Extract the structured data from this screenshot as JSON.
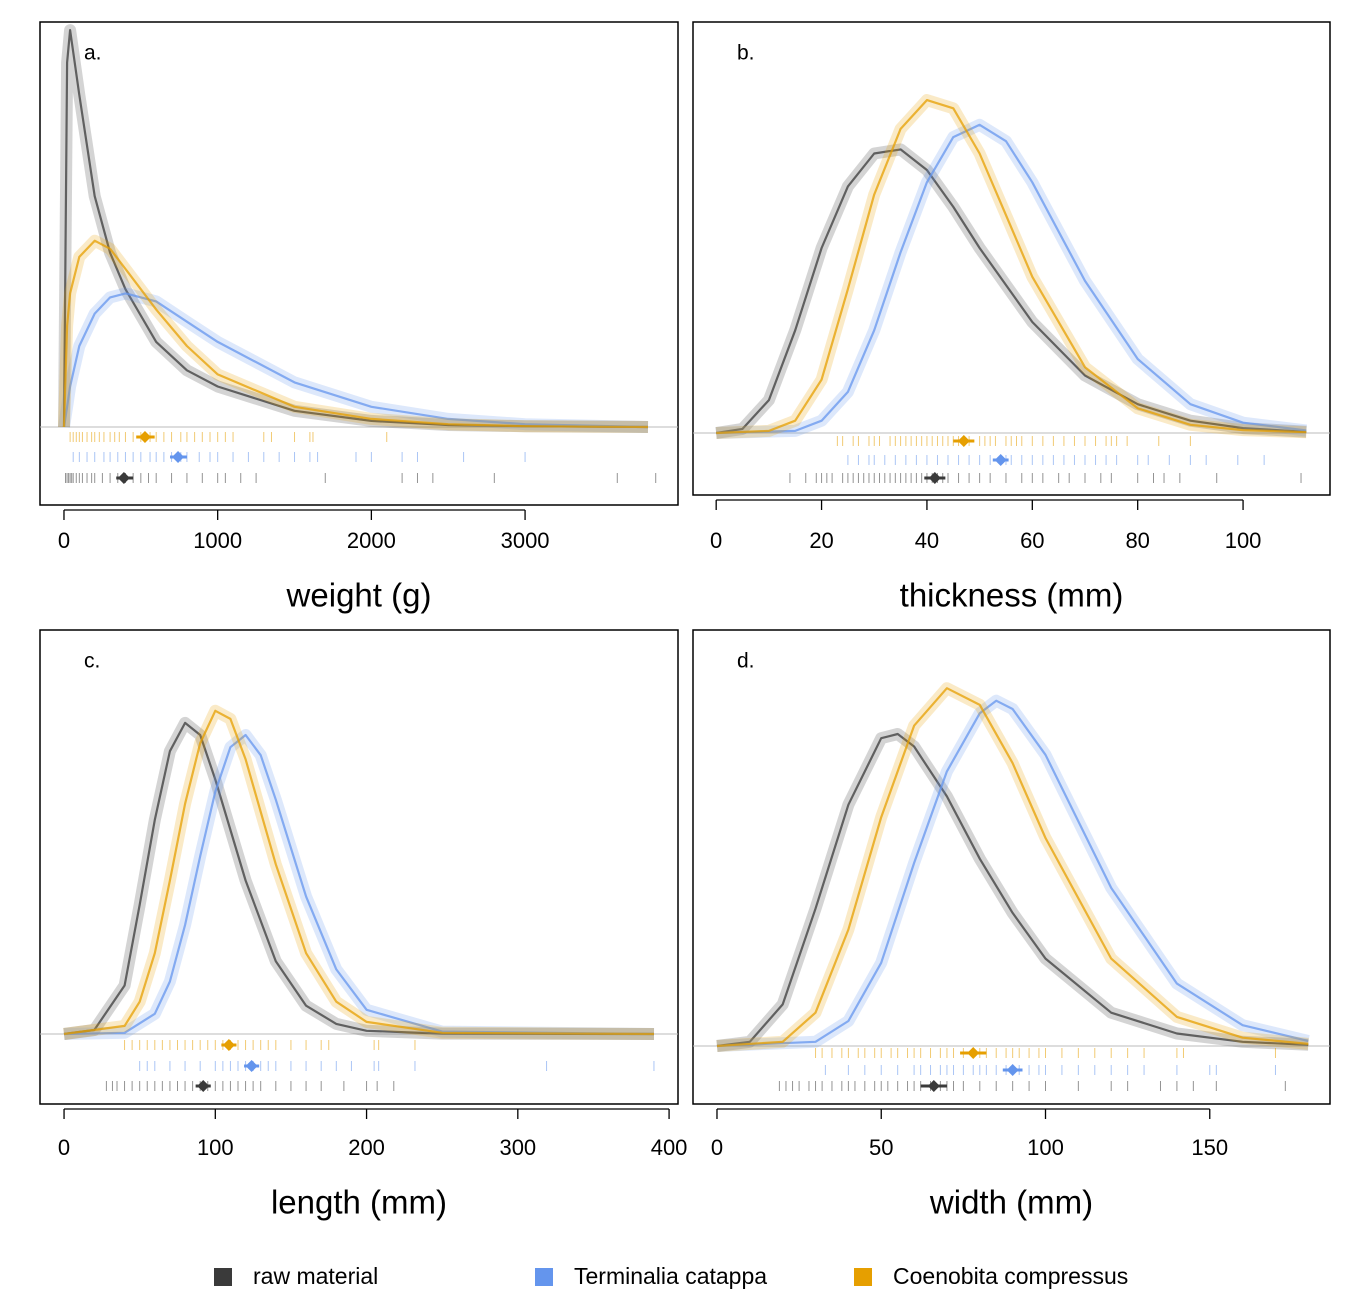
{
  "legend": [
    {
      "name": "raw material",
      "color": "#3a3a3a"
    },
    {
      "name": "Terminalia catappa",
      "color": "#6495ed"
    },
    {
      "name": "Coenobita compressus",
      "color": "#e69f00"
    }
  ],
  "chart_data": [
    {
      "type": "density",
      "label": "a.",
      "xlabel": "weight (g)",
      "xlim": [
        -156,
        3995
      ],
      "ylim": [
        0,
        1
      ],
      "xticks": [
        0,
        1000,
        2000,
        3000
      ],
      "series": [
        {
          "x": [
            0,
            20,
            40,
            100,
            200,
            300,
            400,
            600,
            800,
            1000,
            1500,
            2000,
            2500,
            3000,
            3800
          ],
          "values": [
            0,
            0.9,
            0.98,
            0.82,
            0.57,
            0.43,
            0.34,
            0.21,
            0.14,
            0.1,
            0.04,
            0.015,
            0.005,
            0.002,
            0
          ],
          "mean": 390,
          "interval": [
            340,
            450
          ],
          "rug": [
            10,
            20,
            30,
            40,
            50,
            60,
            80,
            100,
            120,
            150,
            180,
            200,
            250,
            300,
            350,
            400,
            450,
            500,
            550,
            600,
            700,
            800,
            900,
            1000,
            1050,
            1150,
            1250,
            1700,
            2200,
            2300,
            2400,
            2800,
            3600,
            3850
          ]
        },
        {
          "x": [
            0,
            20,
            40,
            100,
            200,
            300,
            400,
            600,
            800,
            1000,
            1500,
            2000,
            2500,
            3000,
            3800
          ],
          "values": [
            0,
            0.05,
            0.1,
            0.2,
            0.28,
            0.32,
            0.33,
            0.31,
            0.26,
            0.21,
            0.11,
            0.05,
            0.02,
            0.007,
            0
          ],
          "mean": 742,
          "interval": [
            690,
            800
          ],
          "rug": [
            60,
            100,
            150,
            200,
            260,
            300,
            350,
            400,
            450,
            500,
            560,
            600,
            650,
            700,
            760,
            800,
            880,
            950,
            1000,
            1100,
            1200,
            1300,
            1400,
            1500,
            1600,
            1650,
            1900,
            2000,
            2200,
            2300,
            2600,
            3000
          ]
        },
        {
          "x": [
            0,
            20,
            40,
            100,
            200,
            300,
            400,
            600,
            800,
            1000,
            1500,
            2000,
            2500,
            3000,
            3800
          ],
          "values": [
            0,
            0.25,
            0.33,
            0.42,
            0.46,
            0.44,
            0.39,
            0.29,
            0.2,
            0.13,
            0.05,
            0.02,
            0.007,
            0.002,
            0
          ],
          "mean": 527,
          "interval": [
            470,
            590
          ],
          "rug": [
            40,
            60,
            80,
            100,
            120,
            150,
            180,
            200,
            230,
            260,
            300,
            330,
            360,
            400,
            450,
            500,
            560,
            600,
            650,
            700,
            760,
            800,
            850,
            900,
            950,
            1000,
            1050,
            1100,
            1300,
            1350,
            1500,
            1600,
            1620,
            2100
          ]
        }
      ]
    },
    {
      "type": "density",
      "label": "b.",
      "xlabel": "thickness (mm)",
      "xlim": [
        -4.4,
        116.5
      ],
      "ylim": [
        0,
        1
      ],
      "xticks": [
        0,
        20,
        40,
        60,
        80,
        100
      ],
      "series": [
        {
          "x": [
            0,
            5,
            10,
            15,
            20,
            25,
            30,
            35,
            40,
            45,
            50,
            60,
            70,
            80,
            90,
            100,
            112
          ],
          "values": [
            0,
            0.01,
            0.08,
            0.25,
            0.45,
            0.6,
            0.68,
            0.69,
            0.64,
            0.55,
            0.45,
            0.27,
            0.14,
            0.07,
            0.03,
            0.012,
            0.003
          ],
          "mean": 41.5,
          "interval": [
            39.5,
            43.5
          ],
          "rug": [
            14,
            17,
            19,
            20,
            21,
            22,
            24,
            25,
            26,
            27,
            28,
            29,
            30,
            31,
            32,
            33,
            34,
            35,
            36,
            37,
            38,
            39,
            40,
            41,
            42,
            43,
            44,
            46,
            48,
            50,
            52,
            55,
            58,
            60,
            62,
            65,
            67,
            70,
            73,
            75,
            80,
            83,
            85,
            88,
            95,
            111
          ]
        },
        {
          "x": [
            0,
            15,
            20,
            25,
            30,
            35,
            40,
            45,
            50,
            55,
            60,
            70,
            80,
            90,
            100,
            112
          ],
          "values": [
            0,
            0.005,
            0.03,
            0.1,
            0.25,
            0.44,
            0.61,
            0.72,
            0.75,
            0.71,
            0.61,
            0.37,
            0.18,
            0.07,
            0.025,
            0.006
          ],
          "mean": 54,
          "interval": [
            52.5,
            55.5
          ],
          "rug": [
            25,
            27,
            29,
            30,
            32,
            34,
            36,
            38,
            40,
            42,
            44,
            46,
            48,
            50,
            52,
            54,
            55,
            56,
            58,
            60,
            62,
            64,
            66,
            68,
            70,
            72,
            74,
            76,
            80,
            82,
            86,
            90,
            93,
            99,
            104
          ]
        },
        {
          "x": [
            0,
            10,
            15,
            20,
            25,
            30,
            35,
            40,
            45,
            50,
            55,
            60,
            70,
            80,
            90,
            100,
            112
          ],
          "values": [
            0,
            0.005,
            0.03,
            0.13,
            0.35,
            0.58,
            0.74,
            0.81,
            0.79,
            0.68,
            0.53,
            0.38,
            0.16,
            0.06,
            0.02,
            0.007,
            0.002
          ],
          "mean": 47,
          "interval": [
            45,
            49
          ],
          "rug": [
            23,
            24,
            26,
            27,
            29,
            30,
            31,
            33,
            34,
            35,
            36,
            37,
            38,
            39,
            40,
            41,
            42,
            43,
            44,
            45,
            46,
            47,
            48,
            50,
            51,
            52,
            53,
            55,
            56,
            57,
            58,
            60,
            62,
            64,
            66,
            68,
            70,
            72,
            74,
            75,
            76,
            78,
            84,
            90
          ]
        }
      ]
    },
    {
      "type": "density",
      "label": "c.",
      "xlabel": "length (mm)",
      "xlim": [
        -15.9,
        405.9
      ],
      "ylim": [
        0,
        1
      ],
      "xticks": [
        0,
        100,
        200,
        300,
        400
      ],
      "series": [
        {
          "x": [
            0,
            20,
            40,
            50,
            60,
            70,
            80,
            90,
            100,
            120,
            140,
            160,
            180,
            200,
            250,
            390
          ],
          "values": [
            0,
            0.01,
            0.12,
            0.32,
            0.53,
            0.7,
            0.77,
            0.74,
            0.63,
            0.38,
            0.18,
            0.07,
            0.025,
            0.008,
            0.001,
            0
          ],
          "mean": 92,
          "interval": [
            87,
            97
          ],
          "rug": [
            28,
            32,
            35,
            40,
            45,
            50,
            55,
            60,
            65,
            70,
            75,
            80,
            85,
            90,
            95,
            100,
            105,
            110,
            115,
            120,
            125,
            130,
            140,
            150,
            160,
            170,
            185,
            200,
            207,
            218
          ]
        },
        {
          "x": [
            0,
            40,
            60,
            70,
            80,
            90,
            100,
            110,
            120,
            130,
            140,
            160,
            180,
            200,
            250,
            390
          ],
          "values": [
            0,
            0.003,
            0.05,
            0.13,
            0.27,
            0.44,
            0.6,
            0.71,
            0.74,
            0.69,
            0.58,
            0.34,
            0.16,
            0.06,
            0.006,
            0
          ],
          "mean": 124,
          "interval": [
            119,
            129
          ],
          "rug": [
            50,
            55,
            60,
            70,
            80,
            90,
            100,
            105,
            110,
            115,
            120,
            125,
            130,
            135,
            140,
            150,
            160,
            170,
            180,
            190,
            205,
            208,
            232,
            319,
            390
          ]
        },
        {
          "x": [
            0,
            40,
            50,
            60,
            70,
            80,
            90,
            100,
            110,
            120,
            140,
            160,
            180,
            200,
            250,
            390
          ],
          "values": [
            0,
            0.02,
            0.08,
            0.2,
            0.38,
            0.57,
            0.72,
            0.8,
            0.78,
            0.68,
            0.42,
            0.2,
            0.08,
            0.03,
            0.003,
            0
          ],
          "mean": 109,
          "interval": [
            104,
            114
          ],
          "rug": [
            40,
            45,
            50,
            55,
            60,
            65,
            70,
            75,
            80,
            85,
            90,
            95,
            100,
            105,
            110,
            115,
            120,
            125,
            130,
            135,
            140,
            150,
            160,
            170,
            175,
            205,
            208,
            232
          ]
        }
      ]
    },
    {
      "type": "density",
      "label": "d.",
      "xlabel": "width (mm)",
      "xlim": [
        -7.3,
        186.6
      ],
      "ylim": [
        0,
        1
      ],
      "xticks": [
        0,
        50,
        100,
        150
      ],
      "series": [
        {
          "x": [
            0,
            10,
            20,
            30,
            40,
            50,
            55,
            60,
            70,
            80,
            90,
            100,
            120,
            140,
            160,
            180
          ],
          "values": [
            0,
            0.01,
            0.1,
            0.33,
            0.58,
            0.74,
            0.75,
            0.72,
            0.6,
            0.45,
            0.32,
            0.21,
            0.08,
            0.03,
            0.01,
            0.003
          ],
          "mean": 66,
          "interval": [
            62,
            70
          ],
          "rug": [
            19,
            21,
            23,
            25,
            28,
            30,
            32,
            35,
            38,
            40,
            42,
            45,
            48,
            50,
            52,
            55,
            58,
            60,
            62,
            65,
            68,
            70,
            72,
            75,
            80,
            85,
            90,
            95,
            100,
            110,
            120,
            125,
            135,
            140,
            145,
            152,
            173
          ]
        },
        {
          "x": [
            0,
            30,
            40,
            50,
            60,
            70,
            80,
            85,
            90,
            100,
            120,
            140,
            160,
            180
          ],
          "values": [
            0,
            0.01,
            0.06,
            0.2,
            0.44,
            0.66,
            0.8,
            0.83,
            0.81,
            0.7,
            0.38,
            0.15,
            0.05,
            0.012
          ],
          "mean": 90,
          "interval": [
            87,
            93
          ],
          "rug": [
            33,
            40,
            45,
            50,
            55,
            60,
            62,
            65,
            68,
            70,
            72,
            75,
            78,
            80,
            82,
            85,
            88,
            90,
            92,
            95,
            98,
            100,
            105,
            110,
            115,
            120,
            125,
            130,
            140,
            150,
            152,
            170
          ]
        },
        {
          "x": [
            0,
            20,
            30,
            40,
            50,
            60,
            70,
            80,
            90,
            100,
            120,
            140,
            160,
            180
          ],
          "values": [
            0,
            0.01,
            0.08,
            0.28,
            0.55,
            0.77,
            0.86,
            0.82,
            0.68,
            0.5,
            0.21,
            0.07,
            0.02,
            0.005
          ],
          "mean": 78,
          "interval": [
            74,
            82
          ],
          "rug": [
            30,
            32,
            35,
            38,
            40,
            43,
            45,
            48,
            50,
            53,
            55,
            58,
            60,
            62,
            65,
            68,
            70,
            72,
            75,
            78,
            80,
            82,
            85,
            88,
            90,
            92,
            95,
            98,
            100,
            105,
            110,
            115,
            120,
            125,
            130,
            140,
            142,
            170
          ]
        }
      ]
    }
  ]
}
